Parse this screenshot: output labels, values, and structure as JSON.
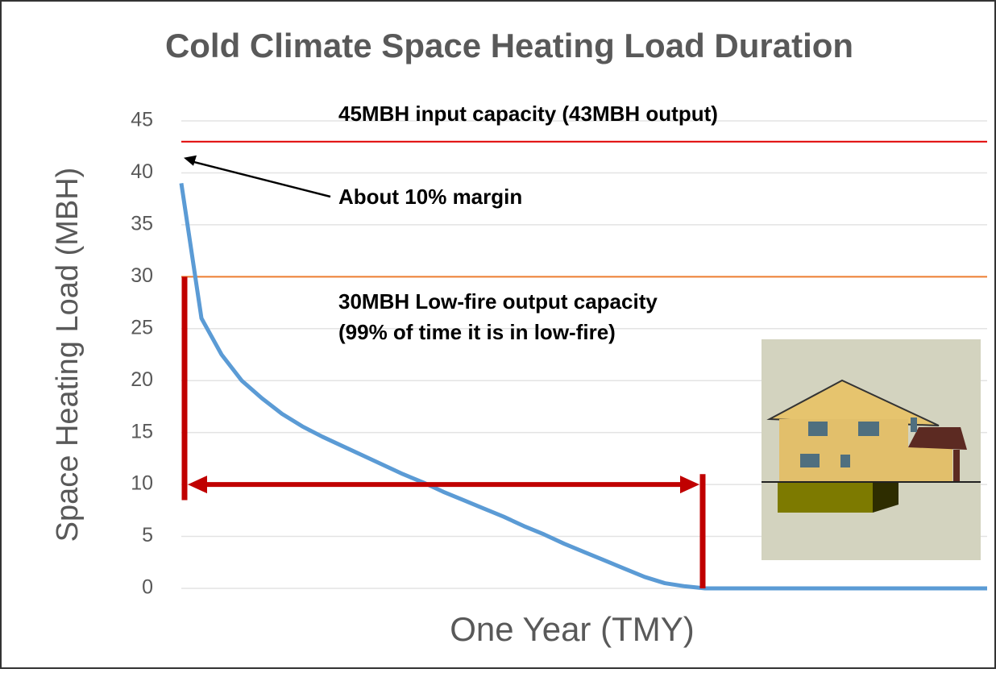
{
  "chart_data": {
    "type": "line",
    "title": "Cold Climate Space Heating Load Duration",
    "y_label": "Space Heating Load (MBH)",
    "x_label": "One Year (TMY)",
    "categories": [
      null,
      null,
      null,
      null,
      null,
      null,
      null,
      null,
      null,
      null,
      null,
      null,
      null,
      null,
      null,
      null,
      null,
      null,
      null,
      null,
      null,
      null,
      null,
      null,
      null,
      null,
      null,
      null,
      null,
      null,
      null,
      null,
      null,
      null,
      null,
      null,
      null,
      null,
      null,
      null,
      null
    ],
    "series": [
      {
        "color": "#5b9bd5",
        "values": [
          39,
          26,
          22.5,
          20,
          18.3,
          16.8,
          15.6,
          14.6,
          13.7,
          12.8,
          11.9,
          11,
          10.2,
          9.3,
          8.5,
          7.7,
          6.9,
          6,
          5.2,
          4.3,
          3.5,
          2.7,
          1.9,
          1.1,
          0.5,
          0.2,
          0,
          0,
          0,
          0,
          0,
          0,
          0,
          0,
          0,
          0,
          0,
          0,
          0,
          0,
          0
        ]
      }
    ],
    "ylim": [
      0,
      45
    ],
    "yticks": [
      0,
      5,
      10,
      15,
      20,
      25,
      30,
      35,
      40,
      45
    ],
    "grid": true,
    "reference_lines": [
      {
        "value": 43,
        "color": "#e00000",
        "label": "45MBH input capacity (43MBH output)"
      },
      {
        "value": 30,
        "color": "#ed7d31",
        "label": [
          "30MBH Low-fire output capacity",
          "(99% of time it is in low-fire)"
        ]
      }
    ],
    "margin_note": "About 10% margin",
    "bracket": {
      "color": "#c00000",
      "left": [
        8.5,
        30
      ],
      "right": [
        0,
        11
      ],
      "arrow": 10
    }
  }
}
